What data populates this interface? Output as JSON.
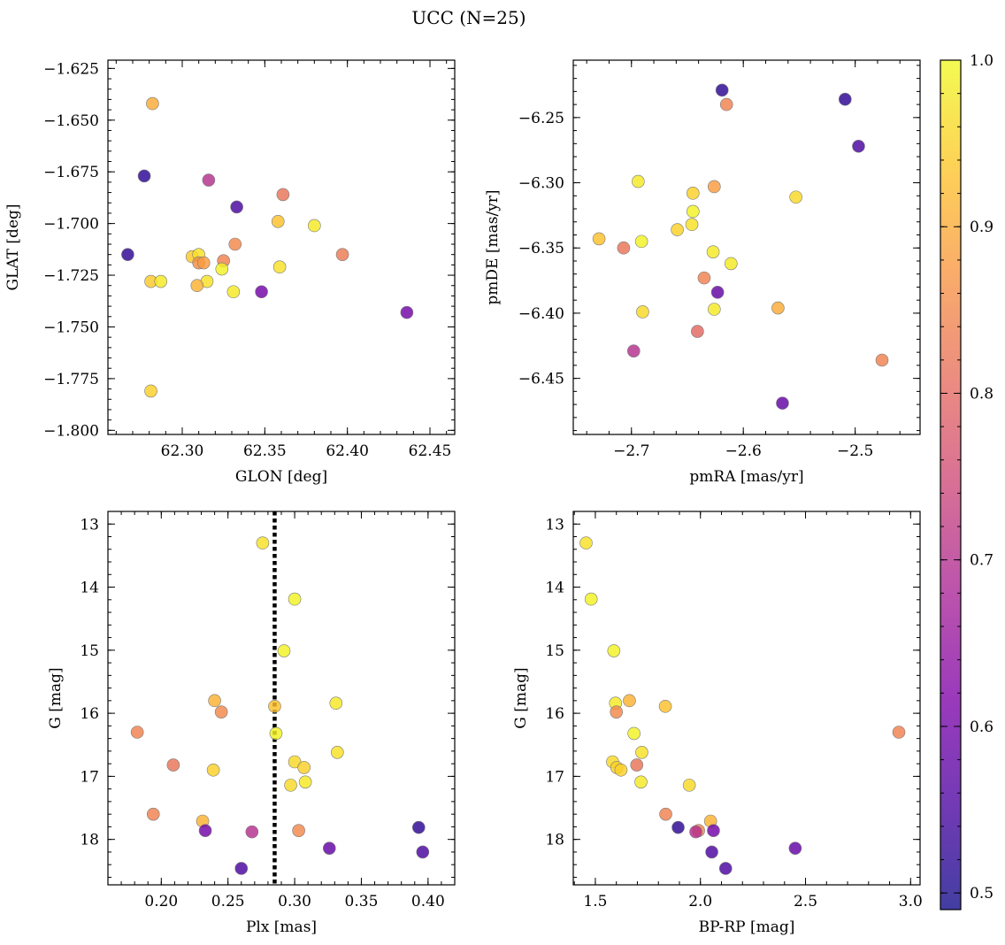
{
  "figure": {
    "title": "UCC (N=25)"
  },
  "colorbar": {
    "min": 0.49,
    "max": 1.0,
    "ticks": [
      0.5,
      0.6,
      0.7,
      0.8,
      0.9,
      1.0
    ],
    "tick_labels": [
      "0.5",
      "0.6",
      "0.7",
      "0.8",
      "0.9",
      "1.0"
    ],
    "colormap": "plasma"
  },
  "chart_data": [
    {
      "type": "scatter",
      "id": "glon-glat",
      "xlabel": "GLON [deg]",
      "ylabel": "GLAT [deg]",
      "xlim": [
        62.255,
        62.465
      ],
      "ylim": [
        -1.802,
        -1.621
      ],
      "y_inverted": false,
      "x_ticks": [
        62.25,
        62.3,
        62.35,
        62.4,
        62.45
      ],
      "x_tick_labels": [
        "62.25",
        "62.30",
        "62.35",
        "62.40",
        "62.45"
      ],
      "y_ticks": [
        -1.625,
        -1.65,
        -1.675,
        -1.7,
        -1.725,
        -1.75,
        -1.775,
        -1.8
      ],
      "y_tick_labels": [
        "−1.625",
        "−1.650",
        "−1.675",
        "−1.700",
        "−1.725",
        "−1.750",
        "−1.775",
        "−1.800"
      ],
      "points": [
        {
          "x": 62.282,
          "y": -1.642,
          "c": 0.9
        },
        {
          "x": 62.277,
          "y": -1.677,
          "c": 0.52
        },
        {
          "x": 62.316,
          "y": -1.679,
          "c": 0.7
        },
        {
          "x": 62.361,
          "y": -1.686,
          "c": 0.82
        },
        {
          "x": 62.333,
          "y": -1.692,
          "c": 0.55
        },
        {
          "x": 62.358,
          "y": -1.699,
          "c": 0.93
        },
        {
          "x": 62.38,
          "y": -1.701,
          "c": 0.98
        },
        {
          "x": 62.267,
          "y": -1.715,
          "c": 0.52
        },
        {
          "x": 62.397,
          "y": -1.715,
          "c": 0.83
        },
        {
          "x": 62.332,
          "y": -1.71,
          "c": 0.85
        },
        {
          "x": 62.306,
          "y": -1.716,
          "c": 0.94
        },
        {
          "x": 62.31,
          "y": -1.715,
          "c": 0.97
        },
        {
          "x": 62.31,
          "y": -1.719,
          "c": 0.86
        },
        {
          "x": 62.313,
          "y": -1.719,
          "c": 0.88
        },
        {
          "x": 62.325,
          "y": -1.718,
          "c": 0.84
        },
        {
          "x": 62.324,
          "y": -1.722,
          "c": 0.99
        },
        {
          "x": 62.359,
          "y": -1.721,
          "c": 0.97
        },
        {
          "x": 62.281,
          "y": -1.728,
          "c": 0.94
        },
        {
          "x": 62.287,
          "y": -1.728,
          "c": 0.98
        },
        {
          "x": 62.315,
          "y": -1.728,
          "c": 0.97
        },
        {
          "x": 62.309,
          "y": -1.73,
          "c": 0.91
        },
        {
          "x": 62.331,
          "y": -1.733,
          "c": 0.98
        },
        {
          "x": 62.348,
          "y": -1.733,
          "c": 0.6
        },
        {
          "x": 62.436,
          "y": -1.743,
          "c": 0.6
        },
        {
          "x": 62.281,
          "y": -1.781,
          "c": 0.95
        }
      ]
    },
    {
      "type": "scatter",
      "id": "pm",
      "xlabel": "pmRA [mas/yr]",
      "ylabel": "pmDE [mas/yr]",
      "xlim": [
        -2.752,
        -2.442
      ],
      "ylim": [
        -6.493,
        -6.206
      ],
      "y_inverted": false,
      "x_ticks": [
        -2.7,
        -2.6,
        -2.5
      ],
      "x_tick_labels": [
        "−2.7",
        "−2.6",
        "−2.5"
      ],
      "y_ticks": [
        -6.25,
        -6.3,
        -6.35,
        -6.4,
        -6.45
      ],
      "y_tick_labels": [
        "−6.25",
        "−6.30",
        "−6.35",
        "−6.40",
        "−6.45"
      ],
      "points": [
        {
          "x": -2.619,
          "y": -6.229,
          "c": 0.52
        },
        {
          "x": -2.509,
          "y": -6.236,
          "c": 0.52
        },
        {
          "x": -2.615,
          "y": -6.24,
          "c": 0.84
        },
        {
          "x": -2.497,
          "y": -6.272,
          "c": 0.55
        },
        {
          "x": -2.694,
          "y": -6.299,
          "c": 0.98
        },
        {
          "x": -2.626,
          "y": -6.303,
          "c": 0.88
        },
        {
          "x": -2.645,
          "y": -6.308,
          "c": 0.95
        },
        {
          "x": -2.553,
          "y": -6.311,
          "c": 0.96
        },
        {
          "x": -2.645,
          "y": -6.322,
          "c": 0.99
        },
        {
          "x": -2.646,
          "y": -6.332,
          "c": 0.97
        },
        {
          "x": -2.659,
          "y": -6.336,
          "c": 0.95
        },
        {
          "x": -2.729,
          "y": -6.343,
          "c": 0.93
        },
        {
          "x": -2.691,
          "y": -6.345,
          "c": 0.99
        },
        {
          "x": -2.707,
          "y": -6.35,
          "c": 0.82
        },
        {
          "x": -2.627,
          "y": -6.353,
          "c": 0.98
        },
        {
          "x": -2.611,
          "y": -6.362,
          "c": 0.98
        },
        {
          "x": -2.635,
          "y": -6.373,
          "c": 0.84
        },
        {
          "x": -2.623,
          "y": -6.384,
          "c": 0.58
        },
        {
          "x": -2.569,
          "y": -6.396,
          "c": 0.9
        },
        {
          "x": -2.626,
          "y": -6.397,
          "c": 0.98
        },
        {
          "x": -2.69,
          "y": -6.399,
          "c": 0.96
        },
        {
          "x": -2.641,
          "y": -6.414,
          "c": 0.8
        },
        {
          "x": -2.698,
          "y": -6.429,
          "c": 0.7
        },
        {
          "x": -2.476,
          "y": -6.436,
          "c": 0.84
        },
        {
          "x": -2.565,
          "y": -6.469,
          "c": 0.58
        }
      ]
    },
    {
      "type": "scatter",
      "id": "plx-g",
      "xlabel": "Plx [mas]",
      "ylabel": "G [mag]",
      "xlim": [
        0.16,
        0.42
      ],
      "ylim": [
        12.8,
        18.72
      ],
      "y_inverted": true,
      "x_ticks": [
        0.2,
        0.25,
        0.3,
        0.35,
        0.4
      ],
      "x_tick_labels": [
        "0.20",
        "0.25",
        "0.30",
        "0.35",
        "0.40"
      ],
      "y_ticks": [
        13,
        14,
        15,
        16,
        17,
        18
      ],
      "y_tick_labels": [
        "13",
        "14",
        "15",
        "16",
        "17",
        "18"
      ],
      "vline": {
        "x": 0.285,
        "style": "dotted"
      },
      "points": [
        {
          "x": 0.276,
          "y": 13.3,
          "c": 0.97
        },
        {
          "x": 0.3,
          "y": 14.19,
          "c": 0.99
        },
        {
          "x": 0.292,
          "y": 15.01,
          "c": 0.99
        },
        {
          "x": 0.24,
          "y": 15.8,
          "c": 0.91
        },
        {
          "x": 0.331,
          "y": 15.84,
          "c": 0.98
        },
        {
          "x": 0.285,
          "y": 15.89,
          "c": 0.93
        },
        {
          "x": 0.245,
          "y": 15.98,
          "c": 0.85
        },
        {
          "x": 0.182,
          "y": 16.3,
          "c": 0.84
        },
        {
          "x": 0.286,
          "y": 16.32,
          "c": 0.99
        },
        {
          "x": 0.332,
          "y": 16.62,
          "c": 0.97
        },
        {
          "x": 0.3,
          "y": 16.77,
          "c": 0.96
        },
        {
          "x": 0.209,
          "y": 16.82,
          "c": 0.82
        },
        {
          "x": 0.307,
          "y": 16.86,
          "c": 0.95
        },
        {
          "x": 0.239,
          "y": 16.9,
          "c": 0.95
        },
        {
          "x": 0.308,
          "y": 17.09,
          "c": 0.98
        },
        {
          "x": 0.297,
          "y": 17.14,
          "c": 0.96
        },
        {
          "x": 0.194,
          "y": 17.6,
          "c": 0.84
        },
        {
          "x": 0.231,
          "y": 17.71,
          "c": 0.91
        },
        {
          "x": 0.393,
          "y": 17.81,
          "c": 0.52
        },
        {
          "x": 0.233,
          "y": 17.86,
          "c": 0.6
        },
        {
          "x": 0.303,
          "y": 17.86,
          "c": 0.85
        },
        {
          "x": 0.268,
          "y": 17.88,
          "c": 0.7
        },
        {
          "x": 0.326,
          "y": 18.14,
          "c": 0.58
        },
        {
          "x": 0.396,
          "y": 18.2,
          "c": 0.55
        },
        {
          "x": 0.26,
          "y": 18.46,
          "c": 0.55
        }
      ]
    },
    {
      "type": "scatter",
      "id": "cmd",
      "xlabel": "BP-RP [mag]",
      "ylabel": "G [mag]",
      "xlim": [
        1.395,
        3.045
      ],
      "ylim": [
        12.8,
        18.72
      ],
      "y_inverted": true,
      "x_ticks": [
        1.5,
        2.0,
        2.5,
        3.0
      ],
      "x_tick_labels": [
        "1.5",
        "2.0",
        "2.5",
        "3.0"
      ],
      "y_ticks": [
        13,
        14,
        15,
        16,
        17,
        18
      ],
      "y_tick_labels": [
        "13",
        "14",
        "15",
        "16",
        "17",
        "18"
      ],
      "points": [
        {
          "x": 1.456,
          "y": 13.3,
          "c": 0.97
        },
        {
          "x": 1.48,
          "y": 14.19,
          "c": 0.99
        },
        {
          "x": 1.588,
          "y": 15.01,
          "c": 0.99
        },
        {
          "x": 1.662,
          "y": 15.8,
          "c": 0.91
        },
        {
          "x": 1.596,
          "y": 15.84,
          "c": 0.98
        },
        {
          "x": 1.833,
          "y": 15.89,
          "c": 0.93
        },
        {
          "x": 1.6,
          "y": 15.98,
          "c": 0.85
        },
        {
          "x": 2.944,
          "y": 16.3,
          "c": 0.84
        },
        {
          "x": 1.684,
          "y": 16.32,
          "c": 0.99
        },
        {
          "x": 1.721,
          "y": 16.62,
          "c": 0.97
        },
        {
          "x": 1.582,
          "y": 16.77,
          "c": 0.96
        },
        {
          "x": 1.697,
          "y": 16.82,
          "c": 0.82
        },
        {
          "x": 1.602,
          "y": 16.86,
          "c": 0.95
        },
        {
          "x": 1.622,
          "y": 16.9,
          "c": 0.95
        },
        {
          "x": 1.717,
          "y": 17.09,
          "c": 0.98
        },
        {
          "x": 1.947,
          "y": 17.14,
          "c": 0.96
        },
        {
          "x": 1.835,
          "y": 17.6,
          "c": 0.84
        },
        {
          "x": 2.048,
          "y": 17.71,
          "c": 0.91
        },
        {
          "x": 1.894,
          "y": 17.81,
          "c": 0.52
        },
        {
          "x": 2.062,
          "y": 17.86,
          "c": 0.6
        },
        {
          "x": 1.991,
          "y": 17.86,
          "c": 0.85
        },
        {
          "x": 1.978,
          "y": 17.88,
          "c": 0.7
        },
        {
          "x": 2.451,
          "y": 18.14,
          "c": 0.58
        },
        {
          "x": 2.054,
          "y": 18.2,
          "c": 0.55
        },
        {
          "x": 2.12,
          "y": 18.46,
          "c": 0.55
        }
      ]
    }
  ]
}
